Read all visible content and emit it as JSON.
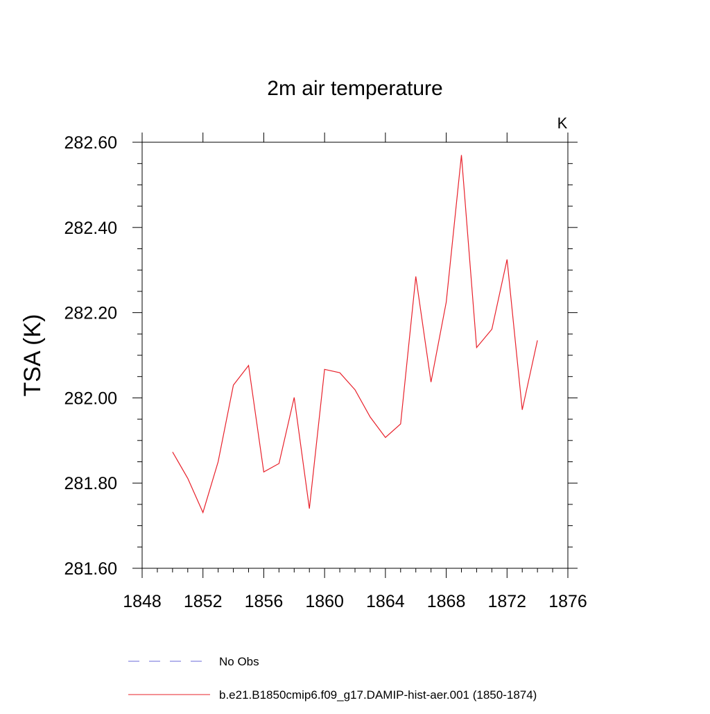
{
  "chart_data": {
    "type": "line",
    "title": "2m air temperature",
    "units_label": "K",
    "ylabel": "TSA  (K)",
    "xlabel": "",
    "xlim": [
      1848,
      1876
    ],
    "ylim": [
      281.6,
      282.6
    ],
    "x_ticks": [
      1848,
      1852,
      1856,
      1860,
      1864,
      1868,
      1872,
      1876
    ],
    "x_tick_labels": [
      "1848",
      "1852",
      "1856",
      "1860",
      "1864",
      "1868",
      "1872",
      "1876"
    ],
    "y_ticks": [
      281.6,
      281.8,
      282.0,
      282.2,
      282.4,
      282.6
    ],
    "y_tick_labels": [
      "281.60",
      "281.80",
      "282.00",
      "282.20",
      "282.40",
      "282.60"
    ],
    "grid": false,
    "legend_position": "bottom",
    "series": [
      {
        "name": "b.e21.B1850cmip6.f09_g17.DAMIP-hist-aer.001 (1850-1874)",
        "color": "#e8202a",
        "style": "solid",
        "x": [
          1850,
          1851,
          1852,
          1853,
          1854,
          1855,
          1856,
          1857,
          1858,
          1859,
          1860,
          1861,
          1862,
          1863,
          1864,
          1865,
          1866,
          1867,
          1868,
          1869,
          1870,
          1871,
          1872,
          1873,
          1874
        ],
        "y": [
          281.873,
          281.811,
          281.731,
          281.85,
          282.03,
          282.076,
          281.826,
          281.846,
          282.001,
          281.74,
          282.067,
          282.059,
          282.019,
          281.955,
          281.907,
          281.939,
          282.285,
          282.037,
          282.225,
          282.57,
          282.118,
          282.161,
          282.325,
          281.972,
          282.135
        ]
      }
    ],
    "legend": [
      {
        "label": "No Obs",
        "color": "#6a6ad8",
        "style": "dashed"
      },
      {
        "label": "b.e21.B1850cmip6.f09_g17.DAMIP-hist-aer.001 (1850-1874)",
        "color": "#e8202a",
        "style": "solid"
      }
    ]
  }
}
